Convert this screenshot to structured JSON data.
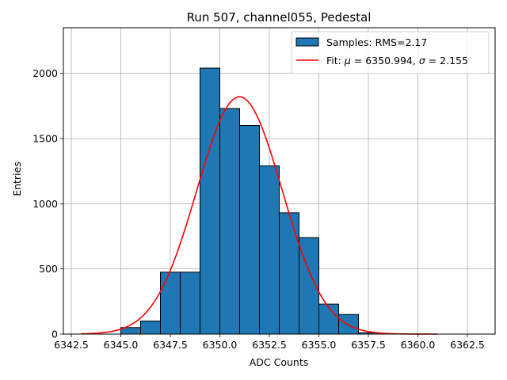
{
  "chart_data": {
    "type": "bar",
    "title": "Run 507, channel055, Pedestal",
    "xlabel": "ADC Counts",
    "ylabel": "Entries",
    "xlim": [
      6342.1,
      6363.9
    ],
    "ylim": [
      0,
      2350
    ],
    "xticks": [
      6342.5,
      6345.0,
      6347.5,
      6350.0,
      6352.5,
      6355.0,
      6357.5,
      6360.0,
      6362.5
    ],
    "xtick_labels": [
      "6342.5",
      "6345.0",
      "6347.5",
      "6350.0",
      "6352.5",
      "6355.0",
      "6357.5",
      "6360.0",
      "6362.5"
    ],
    "yticks": [
      0,
      500,
      1000,
      1500,
      2000
    ],
    "ytick_labels": [
      "0",
      "500",
      "1000",
      "1500",
      "2000"
    ],
    "grid": true,
    "legend_placement": "top-right",
    "bar_color": "#1f77b4",
    "fit_color": "#ff0000",
    "series": [
      {
        "name": "Samples: RMS=2.17",
        "kind": "histogram",
        "bin_edges": [
          6343.0,
          6344.0,
          6345.0,
          6346.0,
          6347.0,
          6348.0,
          6349.0,
          6350.0,
          6351.0,
          6352.0,
          6353.0,
          6354.0,
          6355.0,
          6356.0,
          6357.0,
          6358.0,
          6359.0,
          6360.0,
          6361.0
        ],
        "values": [
          0,
          0,
          50,
          100,
          475,
          475,
          2040,
          1730,
          1600,
          1290,
          930,
          740,
          230,
          150,
          10,
          0,
          0,
          0
        ]
      },
      {
        "name": "Fit: μ = 6350.994, σ = 2.155",
        "kind": "gaussian-fit",
        "mu": 6350.994,
        "sigma": 2.155,
        "amplitude": 1820,
        "x_range": [
          6343.0,
          6361.0
        ]
      }
    ],
    "legend": [
      {
        "label": "Samples: RMS=2.17",
        "marker": "patch"
      },
      {
        "label_prefix": "Fit: ",
        "label_mu": "μ",
        "label_mid": " = 6350.994, ",
        "label_sigma": "σ",
        "label_suffix": " = 2.155",
        "marker": "line"
      }
    ]
  }
}
